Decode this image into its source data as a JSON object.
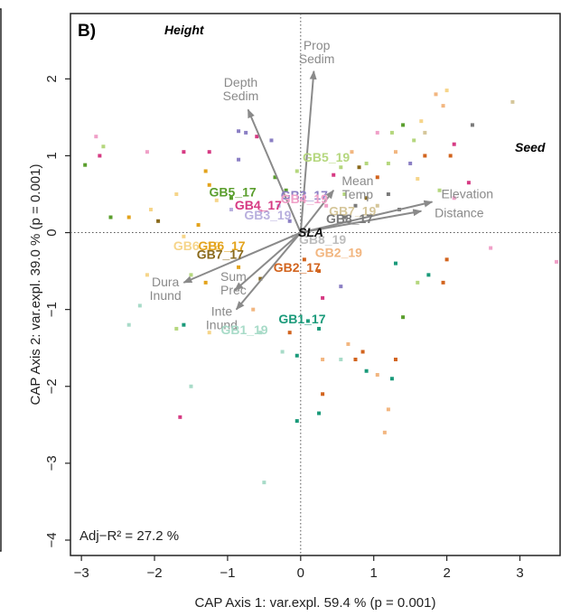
{
  "chart_data": {
    "type": "scatter",
    "panel_label": "B)",
    "corner_labels": {
      "top_left": "Height",
      "top_right": "Seed"
    },
    "xlabel": "CAP Axis 1: var.expl. 59.4 % (p = 0.001)",
    "ylabel": "CAP Axis 2: var.expl. 39.0 % (p = 0.001)",
    "xlim": [
      -3.15,
      3.55
    ],
    "ylim": [
      -4.2,
      2.85
    ],
    "x_ticks": [
      -3,
      -2,
      -1,
      0,
      1,
      2,
      3
    ],
    "y_ticks": [
      -4,
      -3,
      -2,
      -1,
      0,
      1,
      2
    ],
    "annotation": "Adj−R² = 27.2 %",
    "origin_label": "SLA",
    "vectors": [
      {
        "label": [
          "Prop",
          "Sedim"
        ],
        "x": 0.18,
        "y": 2.1,
        "lx": 0.22,
        "ly": 2.38
      },
      {
        "label": [
          "Depth",
          "Sedim"
        ],
        "x": -0.72,
        "y": 1.6,
        "lx": -0.82,
        "ly": 1.9
      },
      {
        "label": [
          "Mean",
          "Temp"
        ],
        "x": 0.45,
        "y": 0.55,
        "lx": 0.78,
        "ly": 0.62
      },
      {
        "label": [
          "Elevation"
        ],
        "x": 1.8,
        "y": 0.4,
        "lx": 2.28,
        "ly": 0.45
      },
      {
        "label": [
          "Distance"
        ],
        "x": 1.65,
        "y": 0.28,
        "lx": 2.17,
        "ly": 0.2
      },
      {
        "label": [
          "Dura",
          "Inund"
        ],
        "x": -1.6,
        "y": -0.65,
        "lx": -1.85,
        "ly": -0.7
      },
      {
        "label": [
          "Sum",
          "Prec"
        ],
        "x": -0.9,
        "y": -0.75,
        "lx": -0.92,
        "ly": -0.63
      },
      {
        "label": [
          "Inte",
          "Inund"
        ],
        "x": -0.88,
        "y": -1.0,
        "lx": -1.08,
        "ly": -1.08
      }
    ],
    "groups": [
      {
        "label": "GB5_19",
        "x": 0.35,
        "y": 0.98,
        "color": "#b5d77e"
      },
      {
        "label": "GB5_17",
        "x": -0.93,
        "y": 0.53,
        "color": "#5a9e2d"
      },
      {
        "label": "GB3_17",
        "x": 0.05,
        "y": 0.49,
        "color": "#8b7fc4"
      },
      {
        "label": "GB4_17",
        "x": -0.58,
        "y": 0.36,
        "color": "#d63a83"
      },
      {
        "label": "GB4_19",
        "x": 0.05,
        "y": 0.44,
        "color": "#f0a0c8"
      },
      {
        "label": "GB3_19",
        "x": -0.45,
        "y": 0.23,
        "color": "#b9b0de"
      },
      {
        "label": "GB7_19",
        "x": 0.71,
        "y": 0.28,
        "color": "#d5c69a"
      },
      {
        "label": "GB8_17",
        "x": 0.67,
        "y": 0.18,
        "color": "#7a7a7a"
      },
      {
        "label": "GB8_19",
        "x": 0.3,
        "y": -0.09,
        "color": "#bdbdbd"
      },
      {
        "label": "GB2_19",
        "x": 0.52,
        "y": -0.26,
        "color": "#f2b680"
      },
      {
        "label": "GB2_17",
        "x": -0.05,
        "y": -0.45,
        "color": "#d2641e"
      },
      {
        "label": "GB6_19",
        "x": -1.42,
        "y": -0.17,
        "color": "#f6d58a"
      },
      {
        "label": "GB6_17",
        "x": -1.08,
        "y": -0.17,
        "color": "#e3a31c"
      },
      {
        "label": "GB7_17",
        "x": -1.1,
        "y": -0.28,
        "color": "#8a6a1c"
      },
      {
        "label": "GB1_17",
        "x": 0.02,
        "y": -1.12,
        "color": "#1a9a7a"
      },
      {
        "label": "GB1_19",
        "x": -0.77,
        "y": -1.26,
        "color": "#a8dbc8"
      }
    ],
    "points": [
      {
        "x": -2.75,
        "y": 1.0,
        "c": "#d63a83"
      },
      {
        "x": -2.95,
        "y": 0.88,
        "c": "#5a9e2d"
      },
      {
        "x": -2.8,
        "y": 1.25,
        "c": "#f0a0c8"
      },
      {
        "x": -2.7,
        "y": 1.12,
        "c": "#b5d77e"
      },
      {
        "x": -2.35,
        "y": 0.2,
        "c": "#e3a31c"
      },
      {
        "x": -2.6,
        "y": 0.2,
        "c": "#5a9e2d"
      },
      {
        "x": -2.05,
        "y": 0.3,
        "c": "#f6d58a"
      },
      {
        "x": -1.95,
        "y": 0.15,
        "c": "#8a6a1c"
      },
      {
        "x": -2.1,
        "y": 1.05,
        "c": "#f0a0c8"
      },
      {
        "x": -1.6,
        "y": 1.05,
        "c": "#d63a83"
      },
      {
        "x": -1.25,
        "y": 1.05,
        "c": "#d63a83"
      },
      {
        "x": -1.25,
        "y": 0.62,
        "c": "#e3a31c"
      },
      {
        "x": -1.15,
        "y": 0.42,
        "c": "#f6d58a"
      },
      {
        "x": -0.95,
        "y": 0.3,
        "c": "#b9b0de"
      },
      {
        "x": -0.85,
        "y": 0.95,
        "c": "#8b7fc4"
      },
      {
        "x": -0.75,
        "y": 1.3,
        "c": "#8b7fc4"
      },
      {
        "x": -0.6,
        "y": 1.25,
        "c": "#d63a83"
      },
      {
        "x": -0.4,
        "y": 1.2,
        "c": "#8b7fc4"
      },
      {
        "x": -0.85,
        "y": 1.32,
        "c": "#8b7fc4"
      },
      {
        "x": -0.95,
        "y": 0.45,
        "c": "#5a9e2d"
      },
      {
        "x": -0.35,
        "y": 0.72,
        "c": "#5a9e2d"
      },
      {
        "x": -0.55,
        "y": 0.28,
        "c": "#f0a0c8"
      },
      {
        "x": -0.15,
        "y": 0.15,
        "c": "#8b7fc4"
      },
      {
        "x": -1.7,
        "y": 0.5,
        "c": "#f6d58a"
      },
      {
        "x": -1.3,
        "y": 0.8,
        "c": "#e3a31c"
      },
      {
        "x": -1.4,
        "y": 0.1,
        "c": "#e3a31c"
      },
      {
        "x": -1.6,
        "y": -0.05,
        "c": "#f6d58a"
      },
      {
        "x": -2.1,
        "y": -0.55,
        "c": "#f6d58a"
      },
      {
        "x": -2.2,
        "y": -0.95,
        "c": "#a8dbc8"
      },
      {
        "x": -2.35,
        "y": -1.2,
        "c": "#a8dbc8"
      },
      {
        "x": -1.5,
        "y": -0.55,
        "c": "#b5d77e"
      },
      {
        "x": -1.3,
        "y": -0.65,
        "c": "#e3a31c"
      },
      {
        "x": -1.6,
        "y": -1.2,
        "c": "#1a9a7a"
      },
      {
        "x": -1.25,
        "y": -1.3,
        "c": "#f6d58a"
      },
      {
        "x": -1.7,
        "y": -1.25,
        "c": "#b5d77e"
      },
      {
        "x": -1.5,
        "y": -2.0,
        "c": "#a8dbc8"
      },
      {
        "x": -1.65,
        "y": -2.4,
        "c": "#d63a83"
      },
      {
        "x": -0.85,
        "y": -0.45,
        "c": "#e3a31c"
      },
      {
        "x": -0.55,
        "y": -0.6,
        "c": "#8a6a1c"
      },
      {
        "x": -0.65,
        "y": -1.0,
        "c": "#f2b680"
      },
      {
        "x": -0.55,
        "y": -1.3,
        "c": "#a8dbc8"
      },
      {
        "x": -0.25,
        "y": -1.55,
        "c": "#a8dbc8"
      },
      {
        "x": -0.15,
        "y": -1.3,
        "c": "#d2641e"
      },
      {
        "x": -0.05,
        "y": -1.6,
        "c": "#1a9a7a"
      },
      {
        "x": -0.5,
        "y": -3.25,
        "c": "#a8dbc8"
      },
      {
        "x": -0.05,
        "y": -2.45,
        "c": "#1a9a7a"
      },
      {
        "x": 0.1,
        "y": -1.15,
        "c": "#1a9a7a"
      },
      {
        "x": 0.25,
        "y": -1.25,
        "c": "#1a9a7a"
      },
      {
        "x": 0.3,
        "y": -1.65,
        "c": "#f2b680"
      },
      {
        "x": 0.25,
        "y": -2.35,
        "c": "#1a9a7a"
      },
      {
        "x": 0.3,
        "y": -2.1,
        "c": "#d2641e"
      },
      {
        "x": 0.05,
        "y": -0.35,
        "c": "#d2641e"
      },
      {
        "x": 0.25,
        "y": -0.5,
        "c": "#d2641e"
      },
      {
        "x": -0.1,
        "y": -0.05,
        "c": "#bdbdbd"
      },
      {
        "x": 0.3,
        "y": -0.85,
        "c": "#d63a83"
      },
      {
        "x": 0.55,
        "y": -0.7,
        "c": "#8b7fc4"
      },
      {
        "x": 0.65,
        "y": -1.45,
        "c": "#f2b680"
      },
      {
        "x": 0.75,
        "y": -1.65,
        "c": "#d2641e"
      },
      {
        "x": 0.85,
        "y": -1.55,
        "c": "#d2641e"
      },
      {
        "x": 0.55,
        "y": -1.65,
        "c": "#a8dbc8"
      },
      {
        "x": 0.9,
        "y": -1.8,
        "c": "#1a9a7a"
      },
      {
        "x": 1.05,
        "y": -1.85,
        "c": "#f2b680"
      },
      {
        "x": 1.25,
        "y": -1.9,
        "c": "#1a9a7a"
      },
      {
        "x": 1.2,
        "y": -2.3,
        "c": "#f2b680"
      },
      {
        "x": 1.15,
        "y": -2.6,
        "c": "#f2b680"
      },
      {
        "x": 1.3,
        "y": -1.65,
        "c": "#d2641e"
      },
      {
        "x": 1.4,
        "y": -1.1,
        "c": "#5a9e2d"
      },
      {
        "x": 1.3,
        "y": -0.4,
        "c": "#1a9a7a"
      },
      {
        "x": 1.6,
        "y": -0.65,
        "c": "#b5d77e"
      },
      {
        "x": 1.75,
        "y": -0.55,
        "c": "#1a9a7a"
      },
      {
        "x": 1.95,
        "y": -0.65,
        "c": "#d2641e"
      },
      {
        "x": 2.0,
        "y": -0.35,
        "c": "#d2641e"
      },
      {
        "x": 2.6,
        "y": -0.2,
        "c": "#f0a0c8"
      },
      {
        "x": 3.5,
        "y": -0.38,
        "c": "#f0a0c8"
      },
      {
        "x": 0.6,
        "y": 0.2,
        "c": "#7a7a7a"
      },
      {
        "x": 0.75,
        "y": 0.35,
        "c": "#7a7a7a"
      },
      {
        "x": 0.9,
        "y": 0.45,
        "c": "#8a6a1c"
      },
      {
        "x": 1.05,
        "y": 0.35,
        "c": "#d5c69a"
      },
      {
        "x": 1.2,
        "y": 0.5,
        "c": "#7a7a7a"
      },
      {
        "x": 0.9,
        "y": 0.9,
        "c": "#b5d77e"
      },
      {
        "x": 1.05,
        "y": 0.72,
        "c": "#d2641e"
      },
      {
        "x": 1.2,
        "y": 0.9,
        "c": "#b5d77e"
      },
      {
        "x": 1.25,
        "y": 1.3,
        "c": "#b5d77e"
      },
      {
        "x": 1.05,
        "y": 1.3,
        "c": "#f0a0c8"
      },
      {
        "x": 1.3,
        "y": 1.05,
        "c": "#f2b680"
      },
      {
        "x": 1.4,
        "y": 1.4,
        "c": "#5a9e2d"
      },
      {
        "x": 1.5,
        "y": 0.9,
        "c": "#8b7fc4"
      },
      {
        "x": 1.6,
        "y": 0.7,
        "c": "#f6d58a"
      },
      {
        "x": 1.55,
        "y": 1.2,
        "c": "#b5d77e"
      },
      {
        "x": 1.7,
        "y": 1.0,
        "c": "#d2641e"
      },
      {
        "x": 1.65,
        "y": 1.45,
        "c": "#f6d58a"
      },
      {
        "x": 1.7,
        "y": 1.3,
        "c": "#d5c69a"
      },
      {
        "x": 1.9,
        "y": 0.55,
        "c": "#b5d77e"
      },
      {
        "x": 2.05,
        "y": 1.0,
        "c": "#d2641e"
      },
      {
        "x": 2.1,
        "y": 1.15,
        "c": "#d63a83"
      },
      {
        "x": 1.85,
        "y": 1.8,
        "c": "#f2b680"
      },
      {
        "x": 2.0,
        "y": 1.85,
        "c": "#f6d58a"
      },
      {
        "x": 1.95,
        "y": 1.65,
        "c": "#f2b680"
      },
      {
        "x": 2.3,
        "y": 0.65,
        "c": "#d63a83"
      },
      {
        "x": 2.35,
        "y": 1.4,
        "c": "#7a7a7a"
      },
      {
        "x": 2.9,
        "y": 1.7,
        "c": "#d5c69a"
      },
      {
        "x": 2.1,
        "y": 0.45,
        "c": "#f0a0c8"
      },
      {
        "x": 1.35,
        "y": 0.3,
        "c": "#7a7a7a"
      },
      {
        "x": 0.45,
        "y": 0.75,
        "c": "#d63a83"
      },
      {
        "x": 0.55,
        "y": 0.85,
        "c": "#b5d77e"
      },
      {
        "x": 0.8,
        "y": 0.85,
        "c": "#8a6a1c"
      },
      {
        "x": 0.7,
        "y": 1.05,
        "c": "#f2b680"
      },
      {
        "x": 0.6,
        "y": 0.5,
        "c": "#b5d77e"
      },
      {
        "x": 0.35,
        "y": 0.35,
        "c": "#f0a0c8"
      },
      {
        "x": -0.3,
        "y": 0.35,
        "c": "#b9b0de"
      },
      {
        "x": -0.2,
        "y": 0.55,
        "c": "#5a9e2d"
      },
      {
        "x": -0.05,
        "y": 0.8,
        "c": "#b5d77e"
      }
    ]
  }
}
